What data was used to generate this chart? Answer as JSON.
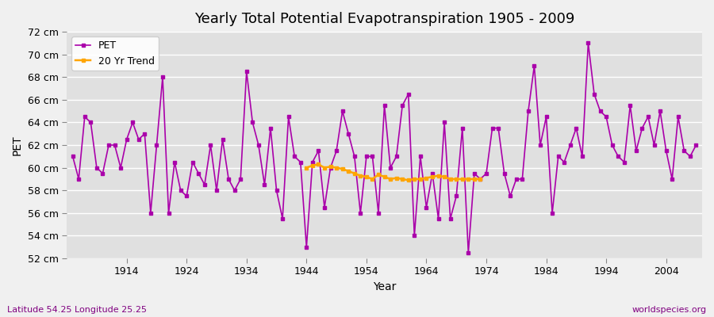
{
  "title": "Yearly Total Potential Evapotranspiration 1905 - 2009",
  "xlabel": "Year",
  "ylabel": "PET",
  "subtitle_left": "Latitude 54.25 Longitude 25.25",
  "subtitle_right": "worldspecies.org",
  "ylim": [
    52,
    72
  ],
  "ytick_labels": [
    "52 cm",
    "54 cm",
    "56 cm",
    "58 cm",
    "60 cm",
    "62 cm",
    "64 cm",
    "66 cm",
    "68 cm",
    "70 cm",
    "72 cm"
  ],
  "ytick_values": [
    52,
    54,
    56,
    58,
    60,
    62,
    64,
    66,
    68,
    70,
    72
  ],
  "xtick_values": [
    1914,
    1924,
    1934,
    1944,
    1954,
    1964,
    1974,
    1984,
    1994,
    2004
  ],
  "pet_color": "#aa00aa",
  "trend_color": "#ffa500",
  "bg_color": "#f0f0f0",
  "plot_bg_color": "#e0e0e0",
  "grid_color": "#ffffff",
  "pet_years": [
    1905,
    1906,
    1907,
    1908,
    1909,
    1910,
    1911,
    1912,
    1913,
    1914,
    1915,
    1916,
    1917,
    1918,
    1919,
    1920,
    1921,
    1922,
    1923,
    1924,
    1925,
    1926,
    1927,
    1928,
    1929,
    1930,
    1931,
    1932,
    1933,
    1934,
    1935,
    1936,
    1937,
    1938,
    1939,
    1940,
    1941,
    1942,
    1943,
    1944,
    1945,
    1946,
    1947,
    1948,
    1949,
    1950,
    1951,
    1952,
    1953,
    1954,
    1955,
    1956,
    1957,
    1958,
    1959,
    1960,
    1961,
    1962,
    1963,
    1964,
    1965,
    1966,
    1967,
    1968,
    1969,
    1970,
    1971,
    1972,
    1973,
    1974,
    1975,
    1976,
    1977,
    1978,
    1979,
    1980,
    1981,
    1982,
    1983,
    1984,
    1985,
    1986,
    1987,
    1988,
    1989,
    1990,
    1991,
    1992,
    1993,
    1994,
    1995,
    1996,
    1997,
    1998,
    1999,
    2000,
    2001,
    2002,
    2003,
    2004,
    2005,
    2006,
    2007,
    2008,
    2009
  ],
  "pet_values": [
    61.0,
    59.0,
    64.5,
    64.0,
    60.0,
    59.5,
    62.0,
    62.0,
    60.0,
    62.5,
    64.0,
    62.5,
    63.0,
    56.0,
    62.0,
    68.0,
    56.0,
    60.5,
    58.0,
    57.5,
    60.5,
    59.5,
    58.5,
    62.0,
    58.0,
    62.5,
    59.0,
    58.0,
    59.0,
    68.5,
    64.0,
    62.0,
    58.5,
    63.5,
    58.0,
    55.5,
    64.5,
    61.0,
    60.5,
    53.0,
    60.5,
    61.5,
    56.5,
    60.0,
    61.5,
    65.0,
    63.0,
    61.0,
    56.0,
    61.0,
    61.0,
    56.0,
    65.5,
    60.0,
    61.0,
    65.5,
    66.5,
    54.0,
    61.0,
    56.5,
    59.5,
    55.5,
    64.0,
    55.5,
    57.5,
    63.5,
    52.5,
    59.5,
    59.0,
    59.5,
    63.5,
    63.5,
    59.5,
    57.5,
    59.0,
    59.0,
    65.0,
    69.0,
    62.0,
    64.5,
    56.0,
    61.0,
    60.5,
    62.0,
    63.5,
    61.0,
    71.0,
    66.5,
    65.0,
    64.5,
    62.0,
    61.0,
    60.5,
    65.5,
    61.5,
    63.5,
    64.5,
    62.0,
    65.0,
    61.5,
    59.0,
    64.5,
    61.5,
    61.0,
    62.0
  ],
  "trend_years": [
    1944,
    1945,
    1946,
    1947,
    1948,
    1949,
    1950,
    1951,
    1952,
    1953,
    1954,
    1955,
    1956,
    1957,
    1958,
    1959,
    1960,
    1961,
    1962,
    1963,
    1964,
    1965,
    1966,
    1967,
    1968,
    1969,
    1970,
    1971,
    1972,
    1973
  ],
  "trend_values": [
    60.0,
    60.2,
    60.3,
    60.0,
    60.1,
    60.0,
    59.9,
    59.7,
    59.5,
    59.3,
    59.2,
    59.0,
    59.4,
    59.2,
    59.0,
    59.1,
    59.0,
    58.9,
    59.0,
    59.0,
    59.1,
    59.2,
    59.3,
    59.2,
    59.0,
    59.0,
    59.0,
    59.0,
    59.0,
    59.0
  ],
  "title_fontsize": 13,
  "axis_fontsize": 10,
  "tick_fontsize": 9,
  "marker_size": 3,
  "line_width": 1.2
}
